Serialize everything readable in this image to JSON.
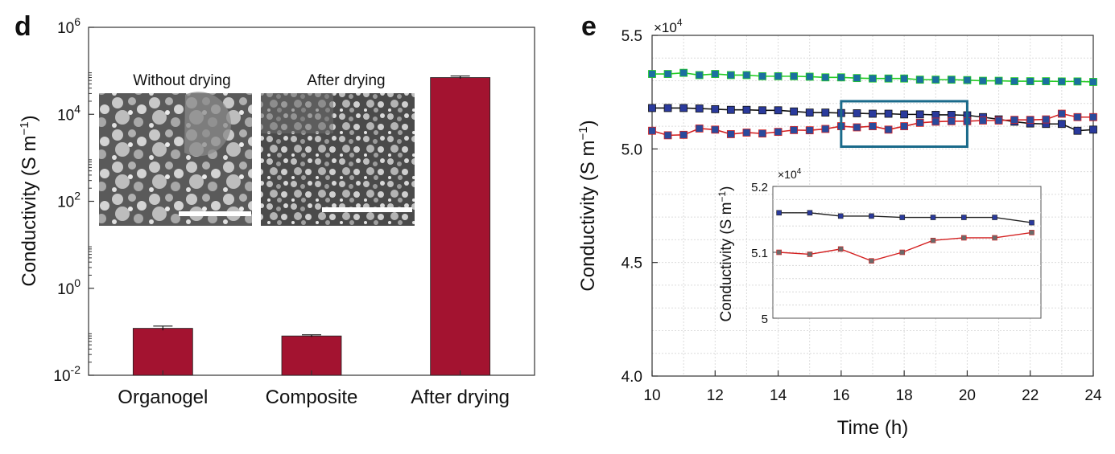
{
  "panels": [
    {
      "letter": "d",
      "chart_data": {
        "type": "bar",
        "yscale": "log",
        "ylim": [
          0.01,
          1000000
        ],
        "ylabel": "Conductivity (S m",
        "ylabel_sup": "−1",
        "ylabel_close": ")",
        "yticks": [
          {
            "base": "10",
            "exp": "-2",
            "value": 0.01
          },
          {
            "base": "10",
            "exp": "0",
            "value": 1
          },
          {
            "base": "10",
            "exp": "2",
            "value": 100
          },
          {
            "base": "10",
            "exp": "4",
            "value": 10000
          },
          {
            "base": "10",
            "exp": "6",
            "value": 1000000
          }
        ],
        "categories": [
          "Organogel",
          "Composite",
          "After drying"
        ],
        "values": [
          0.12,
          0.08,
          70000
        ],
        "error_up": [
          0.135,
          0.085,
          76000
        ],
        "error_down": [
          0.108,
          0.076,
          66000
        ],
        "bar_color": "#a31330",
        "insets": [
          {
            "label": "Without drying",
            "kind": "SEM micrograph"
          },
          {
            "label": "After drying",
            "kind": "SEM micrograph"
          }
        ]
      }
    },
    {
      "letter": "e",
      "chart_data": {
        "type": "line",
        "xlabel": "Time (h)",
        "ylabel": "Conductivity (S m",
        "ylabel_sup": "−1",
        "ylabel_close": ")",
        "multiplier": {
          "base": "×10",
          "exp": "4"
        },
        "xlim": [
          10,
          24
        ],
        "ylim": [
          4.0,
          5.5
        ],
        "xticks": [
          10,
          12,
          14,
          16,
          18,
          20,
          22,
          24
        ],
        "yticks": [
          "4.0",
          "4.5",
          "5.0",
          "5.5"
        ],
        "ytick_values": [
          4.0,
          4.5,
          5.0,
          5.5
        ],
        "series": [
          {
            "name": "green",
            "line_color": "#22cc22",
            "marker_color": "#1b6fa0",
            "x": [
              10,
              10.5,
              11,
              11.5,
              12,
              12.5,
              13,
              13.5,
              14,
              14.5,
              15,
              15.5,
              16,
              16.5,
              17,
              17.5,
              18,
              18.5,
              19,
              19.5,
              20,
              20.5,
              21,
              21.5,
              22,
              22.5,
              23,
              23.5,
              24
            ],
            "y": [
              5.33,
              5.33,
              5.335,
              5.325,
              5.33,
              5.325,
              5.325,
              5.32,
              5.32,
              5.32,
              5.318,
              5.315,
              5.315,
              5.312,
              5.31,
              5.31,
              5.31,
              5.305,
              5.305,
              5.305,
              5.303,
              5.3,
              5.3,
              5.298,
              5.298,
              5.298,
              5.297,
              5.297,
              5.295
            ]
          },
          {
            "name": "black",
            "line_color": "#111111",
            "marker_color": "#2a3a9c",
            "x": [
              10,
              10.5,
              11,
              11.5,
              12,
              12.5,
              13,
              13.5,
              14,
              14.5,
              15,
              15.5,
              16,
              16.5,
              17,
              17.5,
              18,
              18.5,
              19,
              19.5,
              20,
              20.5,
              21,
              21.5,
              22,
              22.5,
              23,
              23.5,
              24
            ],
            "y": [
              5.18,
              5.18,
              5.18,
              5.178,
              5.175,
              5.172,
              5.172,
              5.17,
              5.17,
              5.165,
              5.16,
              5.16,
              5.158,
              5.157,
              5.155,
              5.155,
              5.152,
              5.152,
              5.15,
              5.15,
              5.148,
              5.14,
              5.13,
              5.12,
              5.112,
              5.11,
              5.11,
              5.08,
              5.085
            ]
          },
          {
            "name": "red",
            "line_color": "#d42020",
            "marker_color": "#2a4a9c",
            "x": [
              10,
              10.5,
              11,
              11.5,
              12,
              12.5,
              13,
              13.5,
              14,
              14.5,
              15,
              15.5,
              16,
              16.5,
              17,
              17.5,
              18,
              18.5,
              19,
              19.5,
              20,
              20.5,
              21,
              21.5,
              22,
              22.5,
              23,
              23.5,
              24
            ],
            "y": [
              5.08,
              5.06,
              5.062,
              5.09,
              5.085,
              5.065,
              5.072,
              5.068,
              5.075,
              5.083,
              5.082,
              5.088,
              5.1,
              5.095,
              5.1,
              5.085,
              5.1,
              5.115,
              5.12,
              5.122,
              5.122,
              5.125,
              5.125,
              5.128,
              5.128,
              5.13,
              5.155,
              5.14,
              5.14
            ]
          }
        ],
        "highlight_box": {
          "x0": 16,
          "x1": 20,
          "y0": 5.01,
          "y1": 5.21,
          "color": "#1a6a8a"
        },
        "inset": {
          "ylabel": "Conductivity (S m",
          "ylabel_sup": "−1",
          "ylabel_close": ")",
          "multiplier": {
            "base": "×10",
            "exp": "4"
          },
          "xlim": [
            13.8,
            22.5
          ],
          "ylim": [
            5.0,
            5.2
          ],
          "yticks": [
            "5",
            "5.1",
            "5.2"
          ],
          "ytick_values": [
            5.0,
            5.1,
            5.2
          ],
          "series": [
            {
              "name": "black",
              "line_color": "#222222",
              "marker_color": "#2a3a9c",
              "x": [
                14,
                15,
                16,
                17,
                18,
                19,
                20,
                21,
                22.2
              ],
              "y": [
                5.16,
                5.16,
                5.155,
                5.155,
                5.153,
                5.153,
                5.153,
                5.153,
                5.145
              ]
            },
            {
              "name": "red",
              "line_color": "#d42020",
              "marker_color": "#6a6a6a",
              "x": [
                14,
                15,
                16,
                17,
                18,
                19,
                20,
                21,
                22.2
              ],
              "y": [
                5.1,
                5.097,
                5.105,
                5.087,
                5.1,
                5.118,
                5.122,
                5.122,
                5.13
              ]
            }
          ]
        }
      }
    }
  ]
}
